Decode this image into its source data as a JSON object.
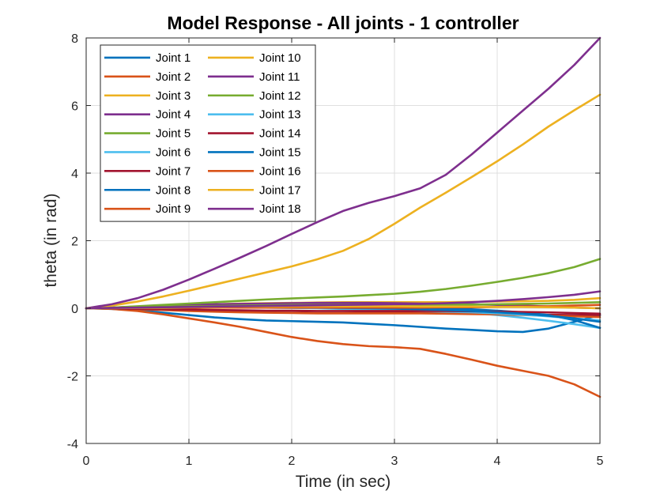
{
  "chart_data": {
    "type": "line",
    "title": "Model Response - All joints - 1 controller",
    "xlabel": "Time (in sec)",
    "ylabel": "theta (in rad)",
    "xlim": [
      0,
      5
    ],
    "ylim": [
      -4,
      8
    ],
    "xticks": [
      0,
      1,
      2,
      3,
      4,
      5
    ],
    "yticks": [
      -4,
      -2,
      0,
      2,
      4,
      6,
      8
    ],
    "grid": true,
    "legend_position": "top-left",
    "legend_columns": 2,
    "x": [
      0,
      0.25,
      0.5,
      0.75,
      1,
      1.25,
      1.5,
      1.75,
      2,
      2.25,
      2.5,
      2.75,
      3,
      3.25,
      3.5,
      3.75,
      4,
      4.25,
      4.5,
      4.75,
      5
    ],
    "series": [
      {
        "name": "Joint 1",
        "color": "#0072BD",
        "values": [
          0,
          -0.02,
          -0.06,
          -0.13,
          -0.2,
          -0.27,
          -0.32,
          -0.36,
          -0.38,
          -0.4,
          -0.42,
          -0.46,
          -0.5,
          -0.55,
          -0.6,
          -0.64,
          -0.68,
          -0.7,
          -0.6,
          -0.4,
          -0.2
        ]
      },
      {
        "name": "Joint 2",
        "color": "#D95319",
        "values": [
          0,
          -0.02,
          -0.08,
          -0.18,
          -0.3,
          -0.42,
          -0.55,
          -0.7,
          -0.85,
          -0.97,
          -1.06,
          -1.12,
          -1.15,
          -1.2,
          -1.35,
          -1.52,
          -1.7,
          -1.85,
          -2.0,
          -2.25,
          -2.62
        ]
      },
      {
        "name": "Joint 3",
        "color": "#EDB120",
        "values": [
          0,
          0.02,
          0.05,
          0.08,
          0.1,
          0.12,
          0.14,
          0.15,
          0.16,
          0.17,
          0.18,
          0.18,
          0.18,
          0.18,
          0.18,
          0.19,
          0.2,
          0.21,
          0.22,
          0.25,
          0.3
        ]
      },
      {
        "name": "Joint 4",
        "color": "#7E2F8E",
        "values": [
          0,
          0.02,
          0.05,
          0.08,
          0.1,
          0.12,
          0.13,
          0.14,
          0.15,
          0.16,
          0.16,
          0.16,
          0.15,
          0.14,
          0.13,
          0.12,
          0.1,
          0.08,
          0.05,
          0.02,
          0
        ]
      },
      {
        "name": "Joint 5",
        "color": "#77AC30",
        "values": [
          0,
          0.02,
          0.06,
          0.1,
          0.14,
          0.18,
          0.22,
          0.26,
          0.29,
          0.32,
          0.35,
          0.39,
          0.43,
          0.49,
          0.57,
          0.67,
          0.78,
          0.9,
          1.04,
          1.22,
          1.46
        ]
      },
      {
        "name": "Joint 6",
        "color": "#4DBEEE",
        "values": [
          0,
          0.01,
          0.02,
          0.03,
          0.04,
          0.05,
          0.06,
          0.06,
          0.06,
          0.06,
          0.05,
          0.03,
          0,
          -0.03,
          -0.08,
          -0.13,
          -0.2,
          -0.28,
          -0.37,
          -0.47,
          -0.58
        ]
      },
      {
        "name": "Joint 7",
        "color": "#A2142F",
        "values": [
          0,
          -0.01,
          -0.02,
          -0.04,
          -0.06,
          -0.08,
          -0.1,
          -0.12,
          -0.13,
          -0.14,
          -0.14,
          -0.13,
          -0.12,
          -0.12,
          -0.13,
          -0.15,
          -0.17,
          -0.18,
          -0.19,
          -0.2,
          -0.2
        ]
      },
      {
        "name": "Joint 8",
        "color": "#0072BD",
        "values": [
          0,
          0.01,
          0.02,
          0.03,
          0.04,
          0.05,
          0.06,
          0.07,
          0.07,
          0.07,
          0.06,
          0.05,
          0.04,
          0.02,
          0,
          -0.03,
          -0.07,
          -0.12,
          -0.2,
          -0.35,
          -0.58
        ]
      },
      {
        "name": "Joint 9",
        "color": "#D95319",
        "values": [
          0,
          -0.01,
          -0.03,
          -0.05,
          -0.08,
          -0.1,
          -0.12,
          -0.13,
          -0.14,
          -0.15,
          -0.15,
          -0.15,
          -0.15,
          -0.15,
          -0.16,
          -0.17,
          -0.18,
          -0.2,
          -0.22,
          -0.24,
          -0.26
        ]
      },
      {
        "name": "Joint 10",
        "color": "#EDB120",
        "values": [
          0,
          0.08,
          0.2,
          0.35,
          0.52,
          0.7,
          0.88,
          1.06,
          1.24,
          1.45,
          1.7,
          2.05,
          2.5,
          2.98,
          3.42,
          3.88,
          4.35,
          4.85,
          5.38,
          5.86,
          6.32
        ]
      },
      {
        "name": "Joint 11",
        "color": "#7E2F8E",
        "values": [
          0,
          0.12,
          0.3,
          0.55,
          0.85,
          1.17,
          1.5,
          1.84,
          2.2,
          2.55,
          2.88,
          3.12,
          3.32,
          3.55,
          3.95,
          4.55,
          5.2,
          5.85,
          6.5,
          7.2,
          8.0
        ]
      },
      {
        "name": "Joint 12",
        "color": "#77AC30",
        "values": [
          0,
          0.01,
          0.03,
          0.05,
          0.06,
          0.07,
          0.08,
          0.09,
          0.1,
          0.1,
          0.11,
          0.11,
          0.11,
          0.11,
          0.11,
          0.11,
          0.12,
          0.13,
          0.14,
          0.16,
          0.18
        ]
      },
      {
        "name": "Joint 13",
        "color": "#4DBEEE",
        "values": [
          0,
          0.0,
          0.01,
          0.01,
          0.02,
          0.02,
          0.02,
          0.02,
          0.01,
          0.0,
          -0.02,
          -0.04,
          -0.06,
          -0.08,
          -0.1,
          -0.12,
          -0.15,
          -0.19,
          -0.24,
          -0.3,
          -0.36
        ]
      },
      {
        "name": "Joint 14",
        "color": "#A2142F",
        "values": [
          0,
          -0.01,
          -0.02,
          -0.03,
          -0.04,
          -0.05,
          -0.06,
          -0.07,
          -0.07,
          -0.08,
          -0.08,
          -0.08,
          -0.08,
          -0.08,
          -0.08,
          -0.09,
          -0.1,
          -0.11,
          -0.12,
          -0.14,
          -0.16
        ]
      },
      {
        "name": "Joint 15",
        "color": "#0072BD",
        "values": [
          0,
          0.0,
          0.01,
          0.01,
          0.02,
          0.02,
          0.03,
          0.03,
          0.03,
          0.02,
          0.01,
          0.0,
          -0.01,
          -0.03,
          -0.05,
          -0.08,
          -0.12,
          -0.16,
          -0.22,
          -0.3,
          -0.4
        ]
      },
      {
        "name": "Joint 16",
        "color": "#D95319",
        "values": [
          0,
          0.0,
          0.01,
          0.01,
          0.02,
          0.02,
          0.02,
          0.02,
          0.02,
          0.02,
          0.02,
          0.02,
          0.02,
          0.02,
          0.03,
          0.03,
          0.04,
          0.05,
          0.06,
          0.08,
          0.1
        ]
      },
      {
        "name": "Joint 17",
        "color": "#EDB120",
        "values": [
          0,
          0.0,
          0.01,
          0.02,
          0.03,
          0.04,
          0.05,
          0.05,
          0.06,
          0.06,
          0.06,
          0.06,
          0.06,
          0.05,
          0.05,
          0.05,
          0.04,
          0.04,
          0.03,
          0.02,
          0.0
        ]
      },
      {
        "name": "Joint 18",
        "color": "#7E2F8E",
        "values": [
          0,
          0.01,
          0.02,
          0.03,
          0.04,
          0.05,
          0.06,
          0.07,
          0.08,
          0.09,
          0.1,
          0.11,
          0.12,
          0.13,
          0.15,
          0.18,
          0.22,
          0.27,
          0.33,
          0.4,
          0.5
        ]
      }
    ]
  }
}
